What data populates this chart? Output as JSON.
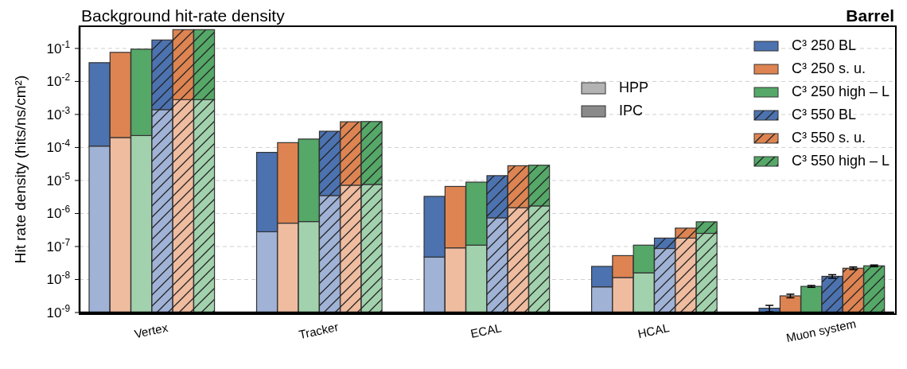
{
  "chart_data": {
    "type": "bar",
    "title": "Background hit-rate density",
    "subtitle": "Barrel",
    "ylabel": "Hit rate density (hits/ns/cm²)",
    "categories": [
      null,
      null,
      "Vertex",
      null,
      null,
      null,
      null,
      null,
      null,
      null,
      "Tracker",
      null,
      null,
      null,
      null,
      null,
      null,
      null,
      "ECAL",
      null,
      null,
      null,
      null,
      null,
      null,
      null,
      "HCAL",
      null,
      null,
      null,
      null,
      null,
      null,
      null,
      "Muon system",
      null,
      null,
      null
    ],
    "stacked": true,
    "log": "y",
    "ylim": [
      1e-09,
      0.47
    ],
    "yticks": [
      {
        "value": 1e-09,
        "label": "10$^{-9}$"
      },
      {
        "value": 1e-08,
        "label": "10$^{-8}$"
      },
      {
        "value": 1e-07,
        "label": "10$^{-7}$"
      },
      {
        "value": 1e-06,
        "label": "10$^{-6}$"
      },
      {
        "value": 1e-05,
        "label": "10$^{-5}$"
      },
      {
        "value": 0.0001,
        "label": "10$^{-4}$"
      },
      {
        "value": 0.001,
        "label": "10$^{-3}$"
      },
      {
        "value": 0.01,
        "label": "10$^{-2}$"
      },
      {
        "value": 0.1,
        "label": "10$^{-1}$"
      }
    ],
    "grid": "y",
    "annotations": [
      "HPP",
      "IPC",
      "C³ 250 BL",
      "C³ 250 s. u.",
      "C³ 250 high – L",
      "C³ 550 BL",
      "C³ 550 s. u.",
      "C³ 550 high – L"
    ],
    "series": [
      {
        "values": [
          0.00011,
          0.0002,
          0.00023,
          0.0014,
          0.0028,
          0.0028,
          null,
          null,
          2.8e-07,
          5.1e-07,
          5.7e-07,
          3.5e-06,
          7.2e-06,
          7.6e-06,
          null,
          null,
          4.8e-08,
          9.1e-08,
          1.1e-07,
          7.4e-07,
          1.5e-06,
          1.7e-06,
          null,
          null,
          6e-09,
          1.15e-08,
          1.6e-08,
          8.7e-08,
          1.8e-07,
          2.5e-07,
          null,
          null,
          null,
          null,
          null,
          null,
          null,
          null
        ],
        "colors": [
          "#a0b3d6",
          "#efbca0",
          "#a2d2ad",
          "#a0b3d6",
          "#efbca0",
          "#a2d2ad",
          null,
          null,
          "#a0b3d6",
          "#efbca0",
          "#a2d2ad",
          "#a0b3d6",
          "#efbca0",
          "#a2d2ad",
          null,
          null,
          "#a0b3d6",
          "#efbca0",
          "#a2d2ad",
          "#a0b3d6",
          "#efbca0",
          "#a2d2ad",
          null,
          null,
          "#a0b3d6",
          "#efbca0",
          "#a2d2ad",
          "#a0b3d6",
          "#efbca0",
          "#a2d2ad",
          null,
          null,
          null,
          null,
          null,
          null,
          null,
          null
        ]
      },
      {
        "values": [
          0.0369,
          0.0758,
          0.0948,
          0.1786,
          0.3672,
          0.3672,
          null,
          null,
          7.07e-05,
          0.0001395,
          0.0001794,
          0.0003065,
          0.0005928,
          0.0006024,
          null,
          null,
          3.25e-06,
          6.51e-06,
          8.79e-06,
          1.326e-05,
          2.65e-05,
          2.73e-05,
          null,
          null,
          1.9e-08,
          4.15e-08,
          9.4e-08,
          9.3e-08,
          1.8e-07,
          3.1e-07,
          null,
          null,
          1.35e-09,
          3.2e-09,
          6.2e-09,
          1.25e-08,
          2.2e-08,
          2.6e-08
        ],
        "colors": [
          "#4c72b0",
          "#dd8452",
          "#55a868",
          "#4c72b0",
          "#dd8452",
          "#55a868",
          null,
          null,
          "#4c72b0",
          "#dd8452",
          "#55a868",
          "#4c72b0",
          "#dd8452",
          "#55a868",
          null,
          null,
          "#4c72b0",
          "#dd8452",
          "#55a868",
          "#4c72b0",
          "#dd8452",
          "#55a868",
          null,
          null,
          "#4c72b0",
          "#dd8452",
          "#55a868",
          "#4c72b0",
          "#dd8452",
          "#55a868",
          null,
          null,
          "#4c72b0",
          "#dd8452",
          "#55a868",
          "#4c72b0",
          "#dd8452",
          "#55a868"
        ],
        "errors": [
          null,
          null,
          null,
          null,
          null,
          null,
          null,
          null,
          null,
          null,
          null,
          null,
          null,
          null,
          null,
          null,
          null,
          null,
          null,
          null,
          null,
          null,
          null,
          null,
          null,
          null,
          null,
          null,
          null,
          null,
          null,
          null,
          3e-10,
          4e-10,
          4e-10,
          1.5e-09,
          2e-09,
          1.5e-09
        ]
      }
    ]
  }
}
